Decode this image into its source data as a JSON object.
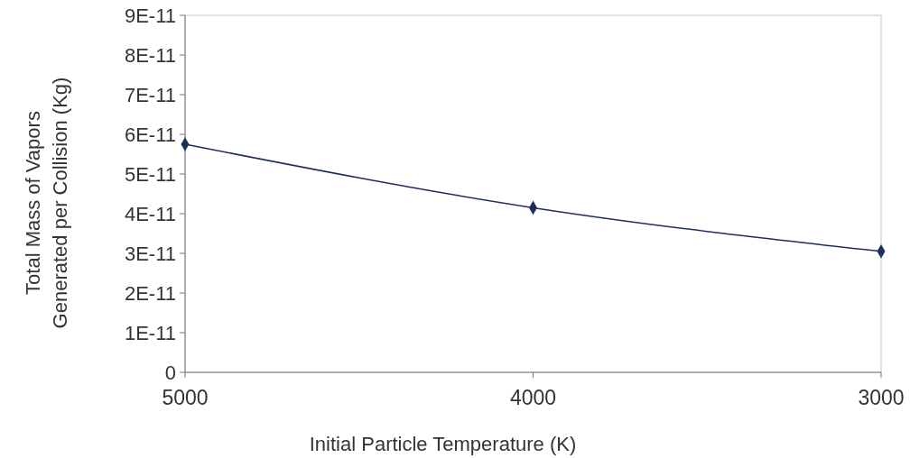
{
  "chart_data": {
    "type": "line",
    "xlabel": "Initial Particle Temperature (K)",
    "ylabel": "Total Mass of Vapors\nGenerated  per Collision (Kg)",
    "x": [
      5000,
      4000,
      3000
    ],
    "series": [
      {
        "color": "#1f2d5c",
        "values": [
          5.75e-11,
          4.15e-11,
          3.05e-11
        ]
      }
    ],
    "xlim": [
      5000,
      3000
    ],
    "xticks": [
      5000,
      4000,
      3000
    ],
    "ylim": [
      0,
      9e-11
    ],
    "yticks": [
      0,
      {
        "value": 1e-11,
        "label": "1E-11"
      },
      {
        "value": 2e-11,
        "label": "2E-11"
      },
      {
        "value": 3e-11,
        "label": "3E-11"
      },
      {
        "value": 4e-11,
        "label": "4E-11"
      },
      {
        "value": 5e-11,
        "label": "5E-11"
      },
      {
        "value": 6e-11,
        "label": "6E-11"
      },
      {
        "value": 7e-11,
        "label": "7E-11"
      },
      {
        "value": 8e-11,
        "label": "8E-11"
      },
      {
        "value": 9e-11,
        "label": "9E-11"
      }
    ],
    "marker": "diamond",
    "line_style": "solid",
    "grid": false
  }
}
